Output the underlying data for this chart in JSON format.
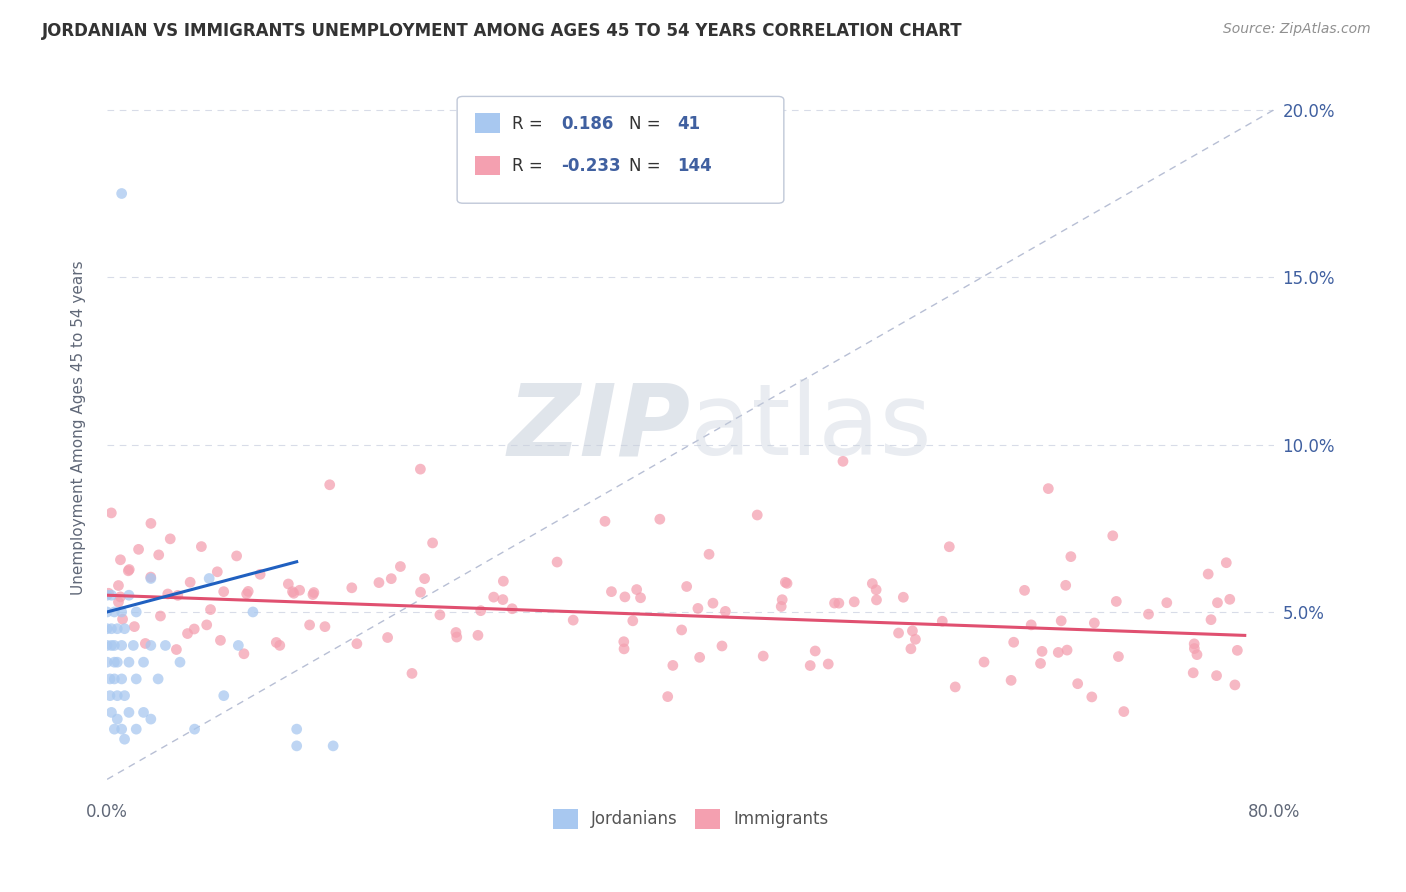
{
  "title": "JORDANIAN VS IMMIGRANTS UNEMPLOYMENT AMONG AGES 45 TO 54 YEARS CORRELATION CHART",
  "source": "Source: ZipAtlas.com",
  "ylabel": "Unemployment Among Ages 45 to 54 years",
  "xlim": [
    0.0,
    0.8
  ],
  "ylim": [
    -0.005,
    0.215
  ],
  "yticks_right": [
    0.05,
    0.1,
    0.15,
    0.2
  ],
  "ytick_labels_right": [
    "5.0%",
    "10.0%",
    "15.0%",
    "20.0%"
  ],
  "r_jordanian": 0.186,
  "n_jordanian": 41,
  "r_immigrant": -0.233,
  "n_immigrant": 144,
  "jordanian_color": "#a8c8f0",
  "immigrant_color": "#f4a0b0",
  "jordanian_line_color": "#2060c0",
  "immigrant_line_color": "#e05070",
  "reference_line_color": "#b0b8d0",
  "background_color": "#ffffff",
  "grid_color": "#d8dce8",
  "watermark_color": "#d0d8e8",
  "title_color": "#333333",
  "axis_label_color": "#606878",
  "tick_color": "#4060a0",
  "source_color": "#909090"
}
